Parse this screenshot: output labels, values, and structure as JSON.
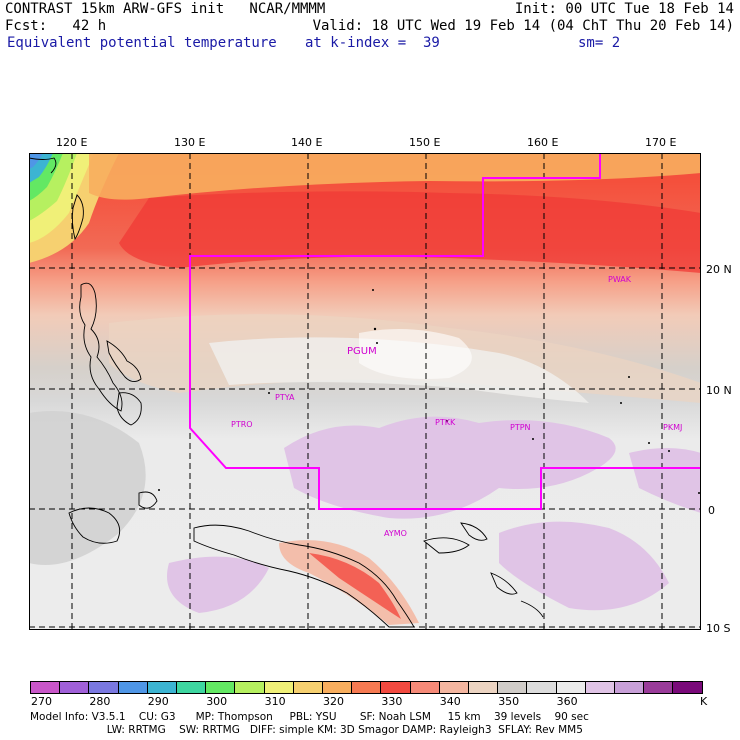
{
  "header": {
    "line1_left": "CONTRAST 15km ARW-GFS init   NCAR/MMMM",
    "line1_right": "Init: 00 UTC Tue 18 Feb 14",
    "line2_left": "Fcst:   42 h",
    "line2_right": "Valid: 18 UTC Wed 19 Feb 14 (04 ChT Thu 20 Feb 14)",
    "line3_left": "Equivalent potential temperature",
    "line3_mid": "at k-index =  39",
    "line3_right": "sm= 2"
  },
  "axes": {
    "lon_labels": [
      "120 E",
      "130 E",
      "140 E",
      "150 E",
      "160 E",
      "170 E"
    ],
    "lat_labels": [
      "20 N",
      "10 N",
      "0",
      "10 S"
    ]
  },
  "stations": [
    "PGUM",
    "PTYA",
    "PTRO",
    "PTKK",
    "PTPN",
    "PKMJ",
    "PWAK",
    "AYMO"
  ],
  "colorbar": {
    "colors": [
      "#c856c8",
      "#a060d8",
      "#7a78e0",
      "#4f96e6",
      "#3cb4d2",
      "#3ed6a0",
      "#63e863",
      "#b6f060",
      "#f0f078",
      "#f6d070",
      "#f8ae5e",
      "#f67a52",
      "#f24a40",
      "#f68a78",
      "#f4b6a0",
      "#ecd4c2",
      "#d0ccc8",
      "#dcdcdc",
      "#ebebeb",
      "#e0c4e6",
      "#c8a0d8",
      "#9a3c9a",
      "#7a0a7a"
    ],
    "labels": [
      "270",
      "280",
      "290",
      "300",
      "310",
      "320",
      "330",
      "340",
      "350",
      "360"
    ],
    "unit": "K"
  },
  "footer": {
    "line1": "Model Info: V3.5.1    CU: G3      MP: Thompson     PBL: YSU       SF: Noah LSM     15 km    39 levels    90 sec",
    "line2": "                       LW: RRTMG    SW: RRTMG   DIFF: simple KM: 3D Smagor DAMP: Rayleigh3  SFLAY: Rev MM5"
  }
}
